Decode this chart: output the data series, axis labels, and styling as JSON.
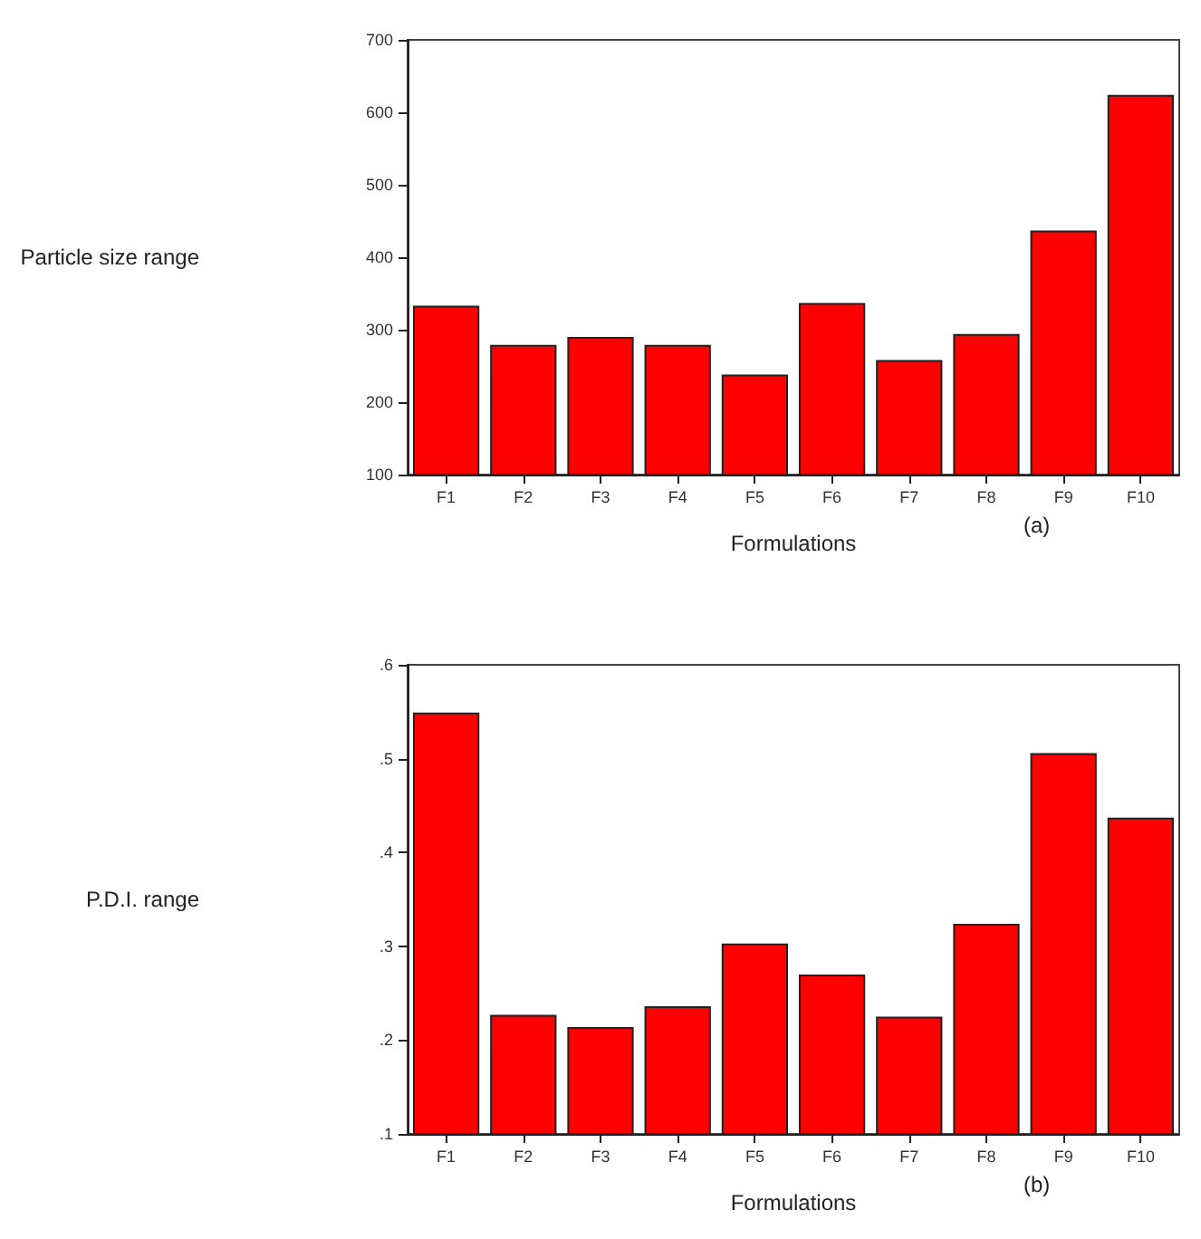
{
  "chart_data": [
    {
      "type": "bar",
      "ylabel": "Particle size range",
      "xlabel": "Formulations",
      "annotations": [
        "(a)"
      ],
      "categories": [
        "F1",
        "F2",
        "F3",
        "F4",
        "F5",
        "F6",
        "F7",
        "F8",
        "F9",
        "F10"
      ],
      "values": [
        333,
        279,
        290,
        279,
        238,
        337,
        258,
        294,
        437,
        624
      ],
      "color": "#ff0000",
      "ylim": [
        100,
        700
      ],
      "yticks": [
        100,
        200,
        300,
        400,
        500,
        600,
        700
      ],
      "grid": false
    },
    {
      "type": "bar",
      "ylabel": "P.D.I. range",
      "xlabel": "Formulations",
      "annotations": [
        "(b)"
      ],
      "categories": [
        "F1",
        "F2",
        "F3",
        "F4",
        "F5",
        "F6",
        "F7",
        "F8",
        "F9",
        "F10"
      ],
      "values": [
        0.549,
        0.227,
        0.214,
        0.236,
        0.303,
        0.27,
        0.225,
        0.324,
        0.506,
        0.437
      ],
      "color": "#ff0000",
      "ylim": [
        0.1,
        0.6
      ],
      "yticks": [
        {
          "value": 0.1,
          "label": ".1"
        },
        {
          "value": 0.2,
          "label": ".2"
        },
        {
          "value": 0.3,
          "label": ".3"
        },
        {
          "value": 0.4,
          "label": ".4"
        },
        {
          "value": 0.5,
          "label": ".5"
        },
        {
          "value": 0.6,
          "label": ".6"
        }
      ],
      "grid": false
    }
  ]
}
